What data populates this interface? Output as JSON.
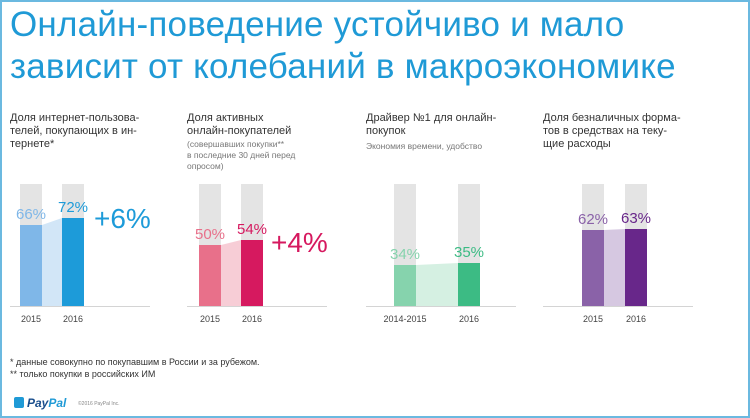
{
  "title_line1": "Онлайн-поведение устойчиво и мало",
  "title_line2": "зависит от колебаний в макроэкономике",
  "chart_data": [
    {
      "type": "bar",
      "title": "Доля интернет-пользова-\nтелей, покупающих в ин-\nтернете*",
      "categories": [
        "2015",
        "2016"
      ],
      "values": [
        66,
        72
      ],
      "value_labels": [
        "66%",
        "72%"
      ],
      "delta_label": "+6%",
      "colors": [
        "#7fb7e8",
        "#1d9bd9"
      ],
      "delta_color": "#1d9bd9"
    },
    {
      "type": "bar",
      "title": "Доля активных\nонлайн-покупателей",
      "subtitle": "(совершавших покупки**\nв последние 30 дней перед\nопросом)",
      "categories": [
        "2015",
        "2016"
      ],
      "values": [
        50,
        54
      ],
      "value_labels": [
        "50%",
        "54%"
      ],
      "delta_label": "+4%",
      "colors": [
        "#e8708a",
        "#d6195f"
      ],
      "delta_color": "#d6195f"
    },
    {
      "type": "bar",
      "title": "Драйвер №1 для онлайн-\nпокупок",
      "subtitle": "Экономия времени, удобство",
      "categories": [
        "2014-2015",
        "2016"
      ],
      "values": [
        34,
        35
      ],
      "value_labels": [
        "34%",
        "35%"
      ],
      "colors": [
        "#86d3ad",
        "#3cbb84"
      ]
    },
    {
      "type": "bar",
      "title": "Доля безналичных форма-\nтов в средствах на теку-\nщие расходы",
      "categories": [
        "2015",
        "2016"
      ],
      "values": [
        62,
        63
      ],
      "value_labels": [
        "62%",
        "63%"
      ],
      "colors": [
        "#8a62a8",
        "#68278a"
      ]
    }
  ],
  "footnote1": "* данные совокупно по покупавшим в России и за рубежом.",
  "footnote2": "** только покупки в российских ИМ",
  "logo_a": "Pay",
  "logo_b": "Pal",
  "copyright": "©2016 PayPal Inc."
}
